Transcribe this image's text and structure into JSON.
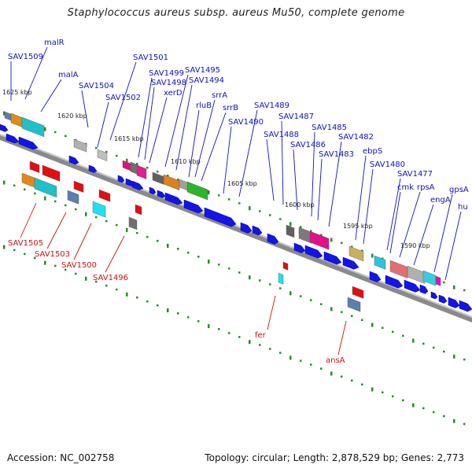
{
  "title": "Staphylococcus aureus subsp. aureus Mu50, complete genome",
  "footer": {
    "accession": "Accession: NC_002758",
    "summary": "Topology: circular; Length: 2,878,529 bp; Genes: 2,773"
  },
  "colors": {
    "forward_gene": "#1414e6",
    "reverse_gene": "#e01010",
    "backbone": "#8a8a8a",
    "tick": "#2a8a2a"
  },
  "scale_labels": [
    "1625 kbp",
    "1620 kbp",
    "1615 kbp",
    "1610 kbp",
    "1605 kbp",
    "1600 kbp",
    "1595 kbp",
    "1590 kbp"
  ],
  "forward_labels": [
    "SAV1509",
    "malR",
    "malA",
    "SAV1504",
    "SAV1501",
    "SAV1502",
    "SAV1499",
    "SAV1498",
    "xerD",
    "SAV1495",
    "SAV1494",
    "rluB",
    "srrA",
    "srrB",
    "SAV1490",
    "SAV1489",
    "SAV1488",
    "SAV1487",
    "SAV1486",
    "SAV1485",
    "SAV1483",
    "SAV1482",
    "ebpS",
    "SAV1480",
    "SAV1477",
    "cmk",
    "rpsA",
    "engA",
    "gpsA",
    "hu"
  ],
  "reverse_labels": [
    "SAV1505",
    "SAV1503",
    "SAV1500",
    "SAV1496",
    "fer",
    "ansA"
  ]
}
